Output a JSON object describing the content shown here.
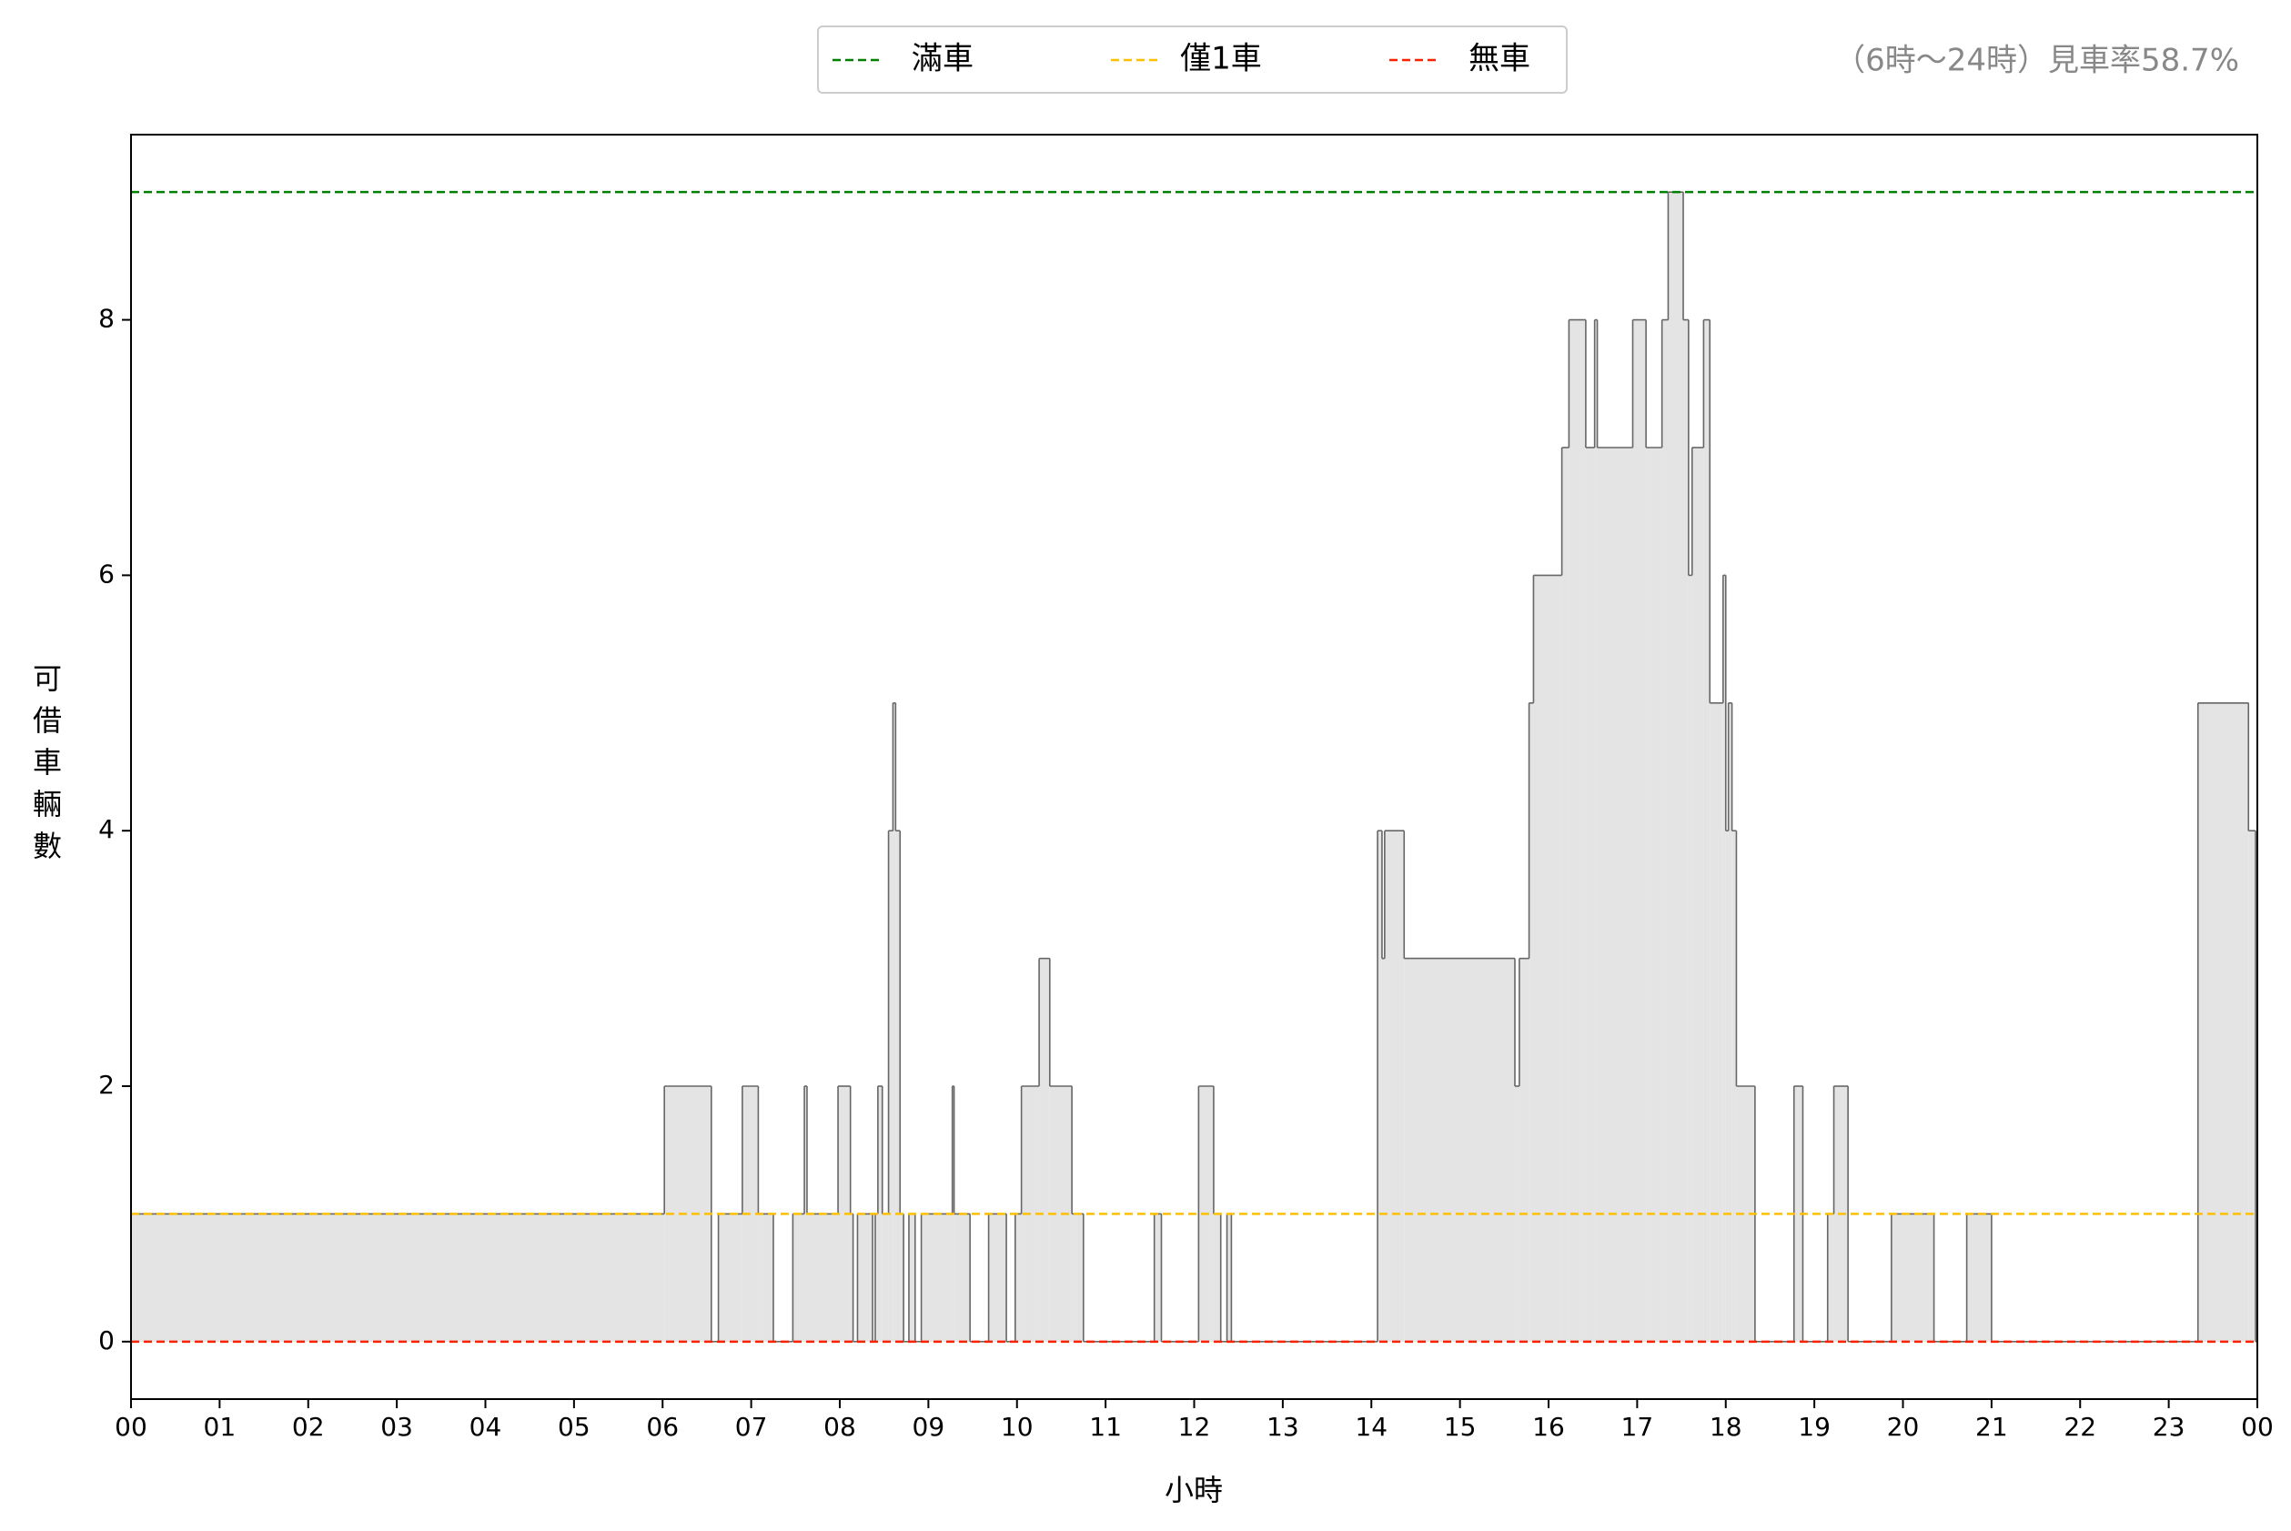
{
  "chart_data": {
    "type": "step-area",
    "annotation": "（6時～24時）見車率58.7%",
    "x_label": "小時",
    "y_label": "可借車輛數",
    "fill": "#e4e4e4",
    "stroke": "#666666",
    "x": [
      0,
      6.02,
      6.55,
      6.63,
      6.9,
      7.08,
      7.25,
      7.47,
      7.6,
      7.63,
      7.98,
      8.12,
      8.15,
      8.2,
      8.37,
      8.4,
      8.43,
      8.48,
      8.55,
      8.6,
      8.63,
      8.68,
      8.72,
      8.78,
      8.85,
      8.92,
      9.27,
      9.29,
      9.47,
      9.68,
      9.88,
      9.98,
      10.05,
      10.25,
      10.37,
      10.62,
      10.75,
      11.55,
      11.63,
      12.05,
      12.22,
      12.3,
      12.37,
      12.42,
      14.07,
      14.12,
      14.15,
      14.37,
      15.62,
      15.67,
      15.78,
      15.83,
      16.15,
      16.23,
      16.42,
      16.52,
      16.55,
      16.95,
      17.1,
      17.28,
      17.35,
      17.52,
      17.58,
      17.62,
      17.75,
      17.82,
      17.97,
      18.0,
      18.03,
      18.07,
      18.12,
      18.33,
      18.77,
      18.87,
      19.15,
      19.22,
      19.38,
      19.87,
      20.35,
      20.72,
      21.0,
      23.33,
      23.9,
      23.98
    ],
    "values": [
      1,
      2,
      0,
      1,
      2,
      1,
      0,
      1,
      2,
      1,
      2,
      1,
      0,
      1,
      0,
      1,
      2,
      1,
      4,
      5,
      4,
      1,
      0,
      1,
      0,
      1,
      2,
      1,
      0,
      1,
      0,
      1,
      2,
      3,
      2,
      1,
      0,
      1,
      0,
      2,
      1,
      0,
      1,
      0,
      4,
      3,
      4,
      3,
      2,
      3,
      5,
      6,
      7,
      8,
      7,
      8,
      7,
      8,
      7,
      8,
      9,
      8,
      6,
      7,
      8,
      5,
      6,
      4,
      5,
      4,
      2,
      0,
      2,
      0,
      1,
      2,
      0,
      1,
      0,
      1,
      0,
      5,
      4,
      0
    ],
    "reference_lines": [
      {
        "name": "滿車",
        "value": 9,
        "color": "#008000"
      },
      {
        "name": "僅1車",
        "value": 1,
        "color": "#ffc000"
      },
      {
        "name": "無車",
        "value": 0,
        "color": "#ff2000"
      }
    ],
    "xlim": [
      0,
      24
    ],
    "xticks": [
      {
        "value": 0,
        "label": "00"
      },
      {
        "value": 1,
        "label": "01"
      },
      {
        "value": 2,
        "label": "02"
      },
      {
        "value": 3,
        "label": "03"
      },
      {
        "value": 4,
        "label": "04"
      },
      {
        "value": 5,
        "label": "05"
      },
      {
        "value": 6,
        "label": "06"
      },
      {
        "value": 7,
        "label": "07"
      },
      {
        "value": 8,
        "label": "08"
      },
      {
        "value": 9,
        "label": "09"
      },
      10,
      11,
      12,
      13,
      14,
      15,
      16,
      17,
      18,
      19,
      20,
      21,
      22,
      23,
      {
        "value": 24,
        "label": "00"
      }
    ],
    "ylim": [
      -0.45,
      9.45
    ],
    "yticks": [
      0,
      2,
      4,
      6,
      8
    ]
  }
}
